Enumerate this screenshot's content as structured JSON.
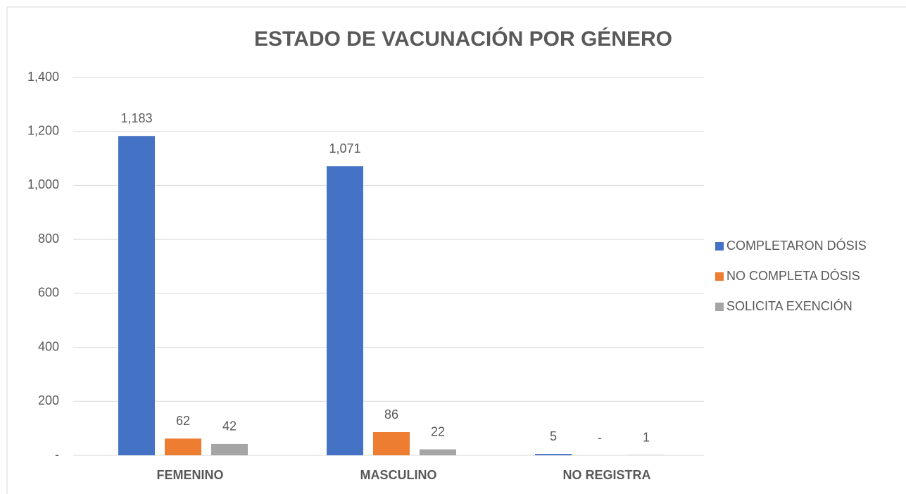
{
  "chart_data": {
    "type": "bar",
    "title": "ESTADO DE VACUNACIÓN POR GÉNERO",
    "categories": [
      "FEMENINO",
      "MASCULINO",
      "NO REGISTRA"
    ],
    "series": [
      {
        "name": "COMPLETARON DÓSIS",
        "color": "#4472c4",
        "values": [
          1183,
          1071,
          5
        ],
        "value_labels": [
          "1,183",
          "1,071",
          "5"
        ]
      },
      {
        "name": "NO COMPLETA DÓSIS",
        "color": "#ed7d31",
        "values": [
          62,
          86,
          0
        ],
        "value_labels": [
          "62",
          "86",
          "-"
        ]
      },
      {
        "name": "SOLICITA EXENCIÓN",
        "color": "#a5a5a5",
        "values": [
          42,
          22,
          1
        ],
        "value_labels": [
          "42",
          "22",
          "1"
        ]
      }
    ],
    "ylim": [
      0,
      1400
    ],
    "yticks": [
      {
        "value": 0,
        "label": "-"
      },
      200,
      400,
      600,
      800,
      {
        "value": 1000,
        "label": "1,000"
      },
      {
        "value": 1200,
        "label": "1,200"
      },
      {
        "value": 1400,
        "label": "1,400"
      }
    ],
    "grid": true,
    "legend": "right"
  }
}
